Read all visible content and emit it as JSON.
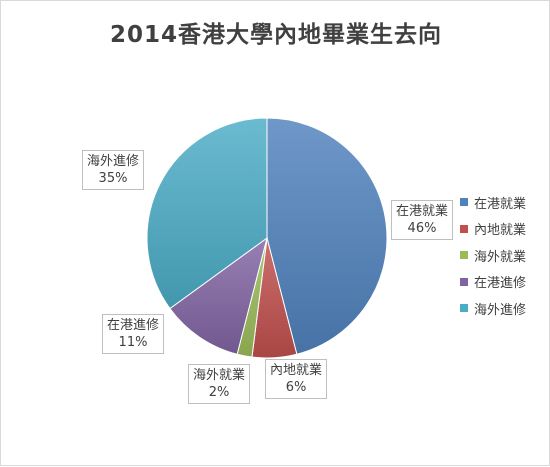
{
  "chart_data": {
    "type": "pie",
    "title": "2014香港大學內地畢業生去向",
    "slices": [
      {
        "label": "在港就業",
        "value": 46,
        "value_label": "46%",
        "color": "#4f81bd"
      },
      {
        "label": "內地就業",
        "value": 6,
        "value_label": "6%",
        "color": "#c0504d"
      },
      {
        "label": "海外就業",
        "value": 2,
        "value_label": "2%",
        "color": "#9bbb59"
      },
      {
        "label": "在港進修",
        "value": 11,
        "value_label": "11%",
        "color": "#8064a2"
      },
      {
        "label": "海外進修",
        "value": 35,
        "value_label": "35%",
        "color": "#4bacc6"
      }
    ],
    "legend_position": "right",
    "start_angle": "12 o'clock",
    "direction": "clockwise",
    "data_labels": "category and percentage, boxed callouts"
  }
}
